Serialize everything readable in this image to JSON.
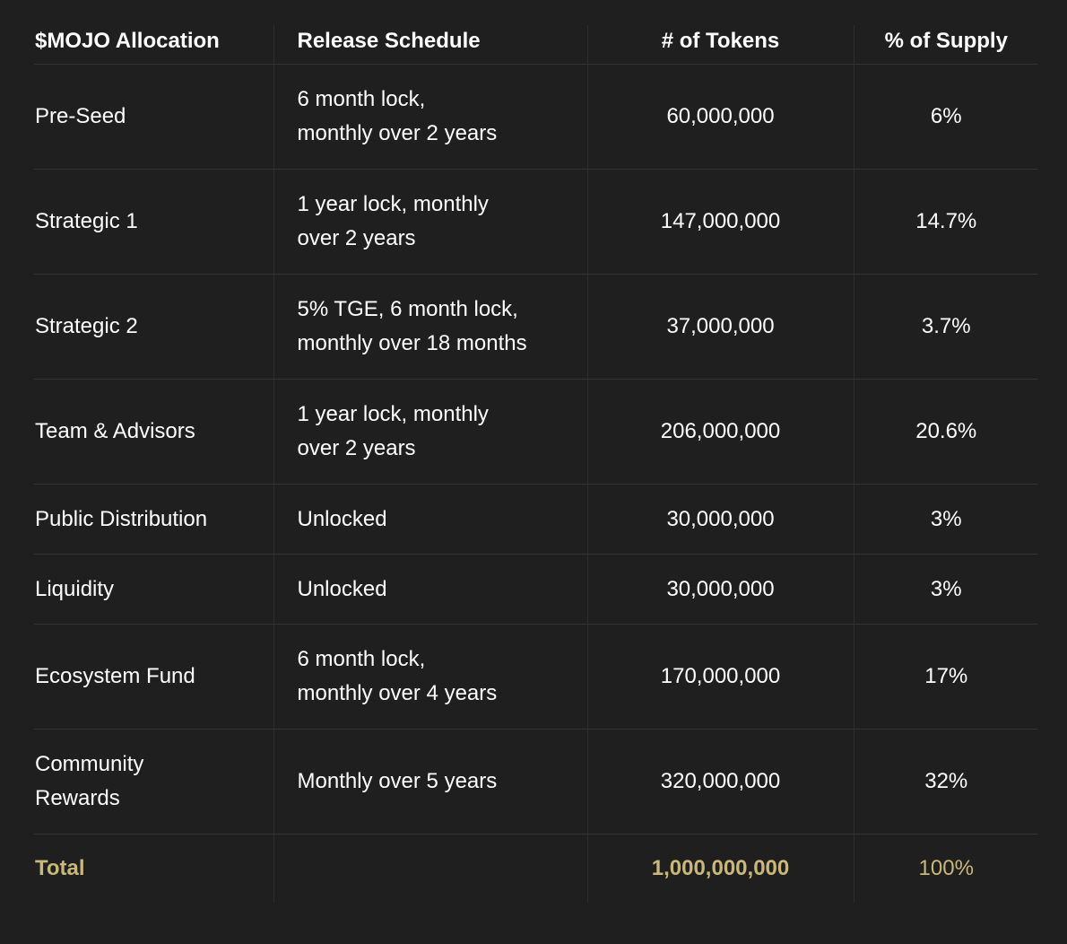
{
  "table": {
    "headers": [
      "$MOJO Allocation",
      "Release Schedule",
      "# of Tokens",
      "% of Supply"
    ],
    "rows": [
      {
        "allocation": "Pre-Seed",
        "schedule_line1": "6 month lock,",
        "schedule_line2": "monthly over 2 years",
        "tokens": "60,000,000",
        "supply": "6%"
      },
      {
        "allocation": "Strategic 1",
        "schedule_line1": "1 year lock, monthly",
        "schedule_line2": "over 2 years",
        "tokens": "147,000,000",
        "supply": "14.7%"
      },
      {
        "allocation": "Strategic 2",
        "schedule_line1": "5% TGE, 6 month lock,",
        "schedule_line2": "monthly over 18 months",
        "tokens": "37,000,000",
        "supply": "3.7%"
      },
      {
        "allocation": "Team & Advisors",
        "schedule_line1": "1 year lock, monthly",
        "schedule_line2": "over 2 years",
        "tokens": "206,000,000",
        "supply": "20.6%"
      },
      {
        "allocation": "Public Distribution",
        "schedule_line1": "Unlocked",
        "schedule_line2": "",
        "tokens": "30,000,000",
        "supply": "3%"
      },
      {
        "allocation": "Liquidity",
        "schedule_line1": "Unlocked",
        "schedule_line2": "",
        "tokens": "30,000,000",
        "supply": "3%"
      },
      {
        "allocation": "Ecosystem Fund",
        "schedule_line1": "6 month lock,",
        "schedule_line2": "monthly over 4 years",
        "tokens": "170,000,000",
        "supply": "17%"
      },
      {
        "allocation_line1": "Community",
        "allocation_line2": "Rewards",
        "schedule_line1": "Monthly over 5 years",
        "schedule_line2": "",
        "tokens": "320,000,000",
        "supply": "32%"
      }
    ],
    "total": {
      "label": "Total",
      "schedule": "",
      "tokens": "1,000,000,000",
      "supply": "100%"
    }
  },
  "colors": {
    "background": "#1f1f1f",
    "text": "#ffffff",
    "total_accent": "#c9b878",
    "border": "#343434"
  }
}
